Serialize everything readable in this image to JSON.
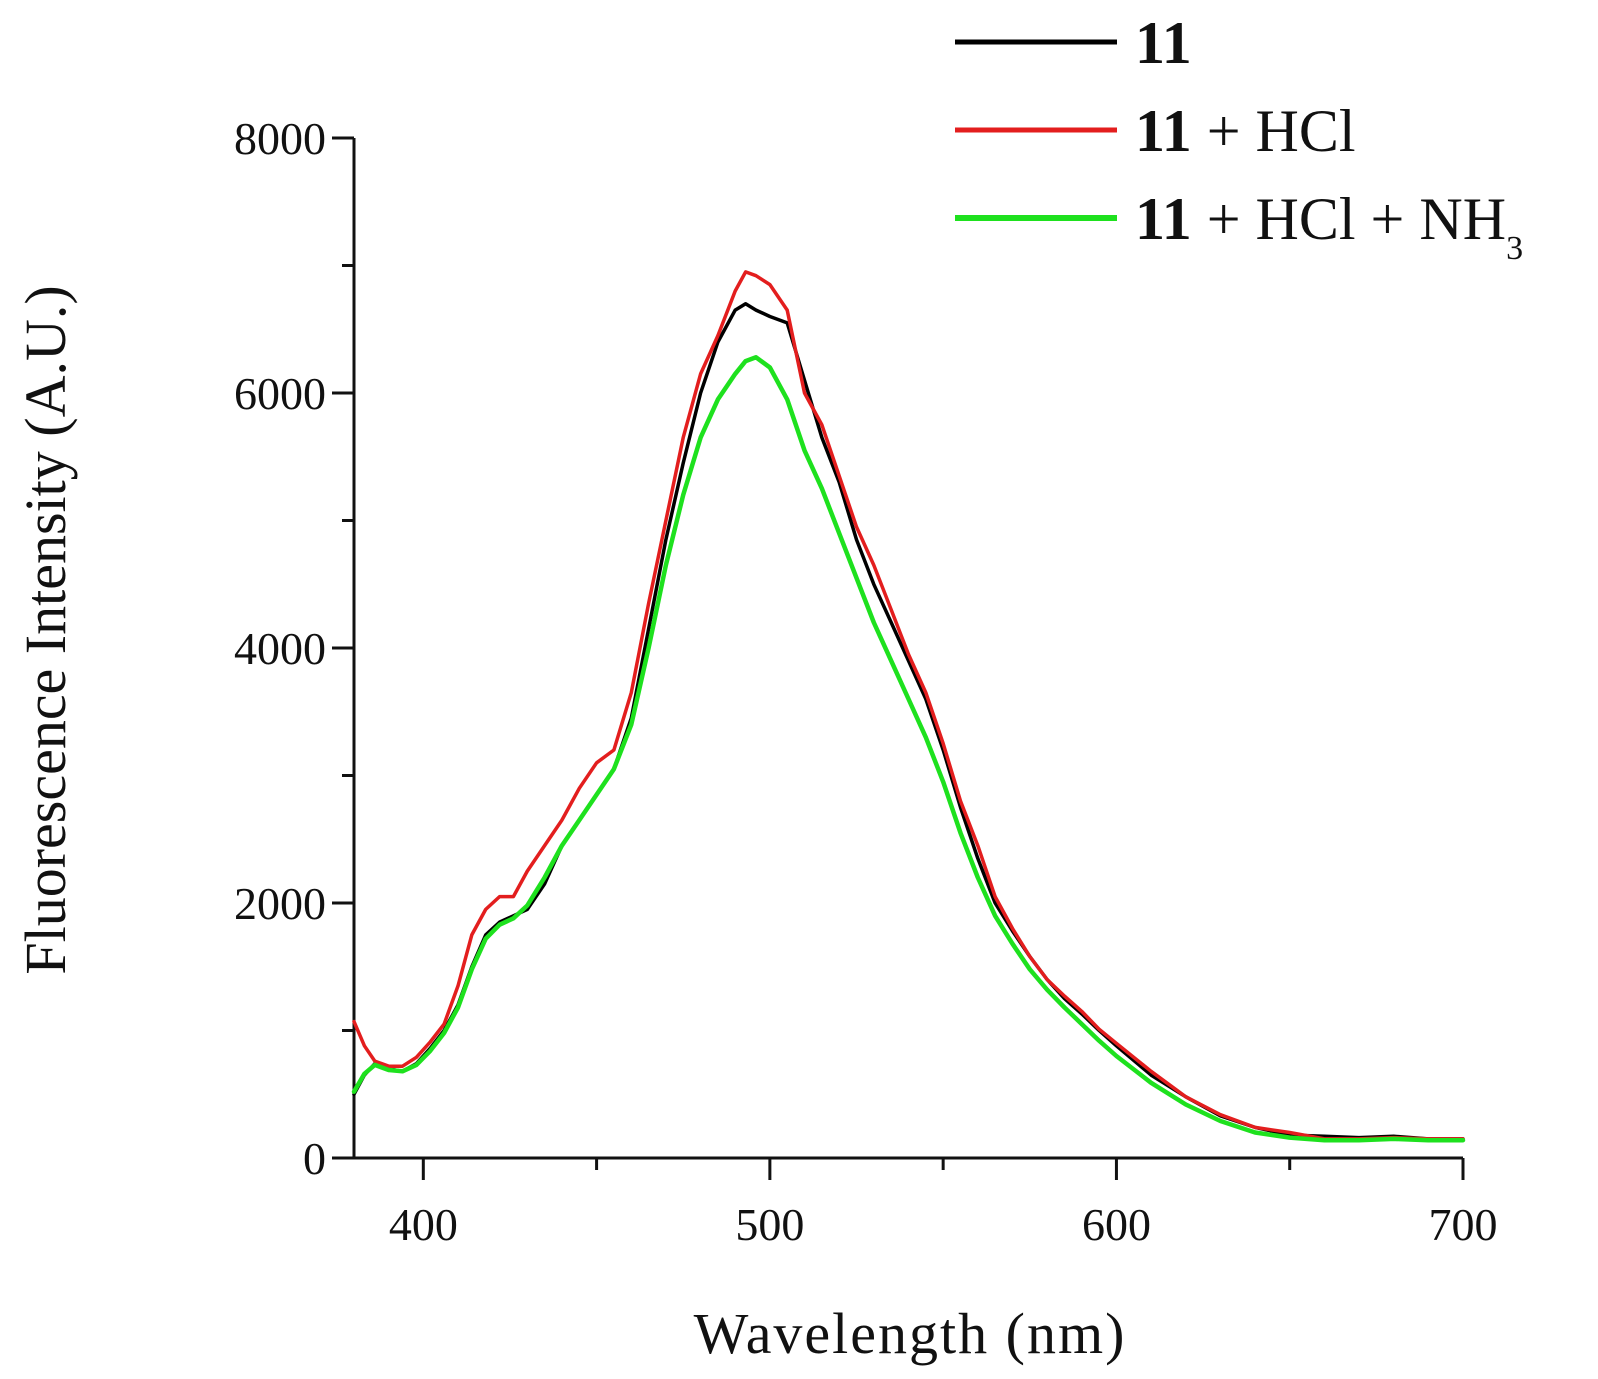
{
  "chart_data": {
    "type": "line",
    "title": "",
    "xlabel": "Wavelength (nm)",
    "ylabel": "Fluorescence Intensity (A.U.)",
    "xlim": [
      380,
      700
    ],
    "ylim": [
      0,
      8000
    ],
    "x_ticks": [
      400,
      500,
      600,
      700
    ],
    "y_ticks": [
      0,
      2000,
      4000,
      6000,
      8000
    ],
    "legend_position": "top-right",
    "series": [
      {
        "name": "11",
        "legend_bold": "11",
        "legend_rest": "",
        "legend_sub": "",
        "color": "#000000",
        "x": [
          380,
          383,
          386,
          390,
          394,
          398,
          402,
          406,
          410,
          414,
          418,
          422,
          426,
          430,
          435,
          440,
          445,
          450,
          455,
          460,
          465,
          470,
          475,
          480,
          485,
          490,
          493,
          496,
          500,
          505,
          510,
          515,
          520,
          525,
          530,
          535,
          540,
          545,
          550,
          555,
          560,
          565,
          570,
          575,
          580,
          585,
          590,
          595,
          600,
          610,
          620,
          630,
          640,
          650,
          660,
          670,
          680,
          690,
          700
        ],
        "values": [
          500,
          650,
          740,
          700,
          680,
          740,
          860,
          1000,
          1200,
          1500,
          1750,
          1850,
          1900,
          1950,
          2150,
          2450,
          2650,
          2850,
          3050,
          3450,
          4150,
          4850,
          5450,
          6000,
          6400,
          6650,
          6700,
          6650,
          6600,
          6550,
          6100,
          5650,
          5300,
          4850,
          4500,
          4200,
          3900,
          3600,
          3200,
          2750,
          2350,
          2000,
          1780,
          1580,
          1400,
          1250,
          1130,
          1000,
          880,
          650,
          480,
          330,
          240,
          180,
          170,
          160,
          170,
          150,
          150
        ]
      },
      {
        "name": "11 + HCl",
        "legend_bold": "11",
        "legend_rest": " + HCl",
        "legend_sub": "",
        "color": "#e31e1e",
        "x": [
          380,
          383,
          386,
          390,
          394,
          398,
          402,
          406,
          410,
          414,
          418,
          422,
          426,
          430,
          435,
          440,
          445,
          450,
          455,
          460,
          465,
          470,
          475,
          480,
          485,
          490,
          493,
          496,
          500,
          505,
          510,
          515,
          520,
          525,
          530,
          535,
          540,
          545,
          550,
          555,
          560,
          565,
          570,
          575,
          580,
          585,
          590,
          595,
          600,
          610,
          620,
          630,
          640,
          650,
          660,
          670,
          680,
          690,
          700
        ],
        "values": [
          1070,
          880,
          760,
          720,
          720,
          790,
          910,
          1050,
          1350,
          1750,
          1950,
          2050,
          2050,
          2250,
          2450,
          2650,
          2900,
          3100,
          3200,
          3650,
          4350,
          5000,
          5650,
          6150,
          6450,
          6800,
          6950,
          6920,
          6850,
          6650,
          6000,
          5750,
          5350,
          4950,
          4650,
          4300,
          3950,
          3650,
          3250,
          2800,
          2450,
          2050,
          1800,
          1580,
          1400,
          1270,
          1150,
          1010,
          900,
          680,
          480,
          340,
          240,
          200,
          150,
          150,
          160,
          150,
          150
        ]
      },
      {
        "name": "11 + HCl + NH3",
        "legend_bold": "11",
        "legend_rest": " + HCl + NH",
        "legend_sub": "3",
        "color": "#1ee11e",
        "x": [
          380,
          383,
          386,
          390,
          394,
          398,
          402,
          406,
          410,
          414,
          418,
          422,
          426,
          430,
          435,
          440,
          445,
          450,
          455,
          460,
          465,
          470,
          475,
          480,
          485,
          490,
          493,
          496,
          500,
          505,
          510,
          515,
          520,
          525,
          530,
          535,
          540,
          545,
          550,
          555,
          560,
          565,
          570,
          575,
          580,
          585,
          590,
          595,
          600,
          610,
          620,
          630,
          640,
          650,
          660,
          670,
          680,
          690,
          700
        ],
        "values": [
          520,
          660,
          730,
          690,
          680,
          730,
          840,
          980,
          1180,
          1480,
          1720,
          1830,
          1880,
          1980,
          2200,
          2450,
          2650,
          2850,
          3050,
          3400,
          4000,
          4650,
          5200,
          5650,
          5950,
          6150,
          6250,
          6280,
          6200,
          5950,
          5550,
          5250,
          4900,
          4550,
          4200,
          3900,
          3600,
          3300,
          2950,
          2550,
          2200,
          1900,
          1680,
          1480,
          1320,
          1180,
          1050,
          920,
          800,
          590,
          420,
          290,
          200,
          160,
          140,
          140,
          150,
          140,
          140
        ]
      }
    ]
  }
}
